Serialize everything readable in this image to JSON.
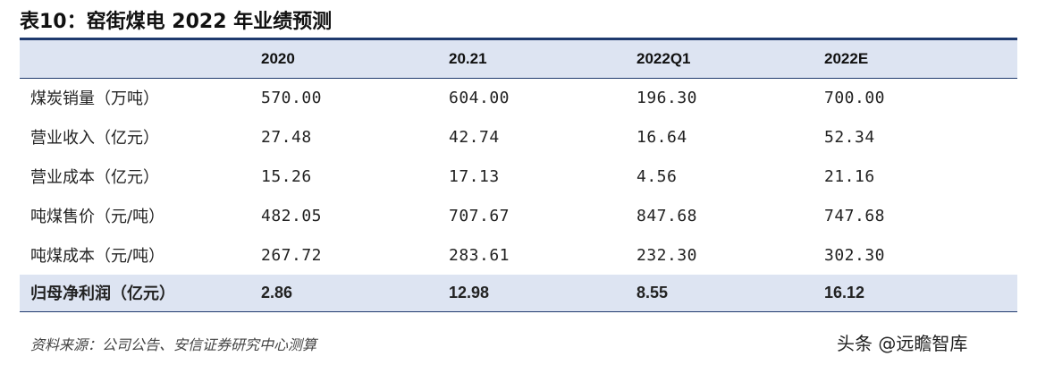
{
  "title": "表10：窑街煤电 2022 年业绩预测",
  "table": {
    "headers": [
      "",
      "2020",
      "20.21",
      "2022Q1",
      "2022E"
    ],
    "rows": [
      {
        "label": "煤炭销量（万吨）",
        "values": [
          "570.00",
          "604.00",
          "196.30",
          "700.00"
        ]
      },
      {
        "label": "营业收入（亿元）",
        "values": [
          "27.48",
          "42.74",
          "16.64",
          "52.34"
        ]
      },
      {
        "label": "营业成本（亿元）",
        "values": [
          "15.26",
          "17.13",
          "4.56",
          "21.16"
        ]
      },
      {
        "label": "吨煤售价（元/吨）",
        "values": [
          "482.05",
          "707.67",
          "847.68",
          "747.68"
        ]
      },
      {
        "label": "吨煤成本（元/吨）",
        "values": [
          "267.72",
          "283.61",
          "232.30",
          "302.30"
        ]
      },
      {
        "label": "归母净利润（亿元）",
        "values": [
          "2.86",
          "12.98",
          "8.55",
          "16.12"
        ]
      }
    ]
  },
  "source": "资料来源：公司公告、安信证券研究中心测算",
  "watermark": "头条 @远瞻智库"
}
